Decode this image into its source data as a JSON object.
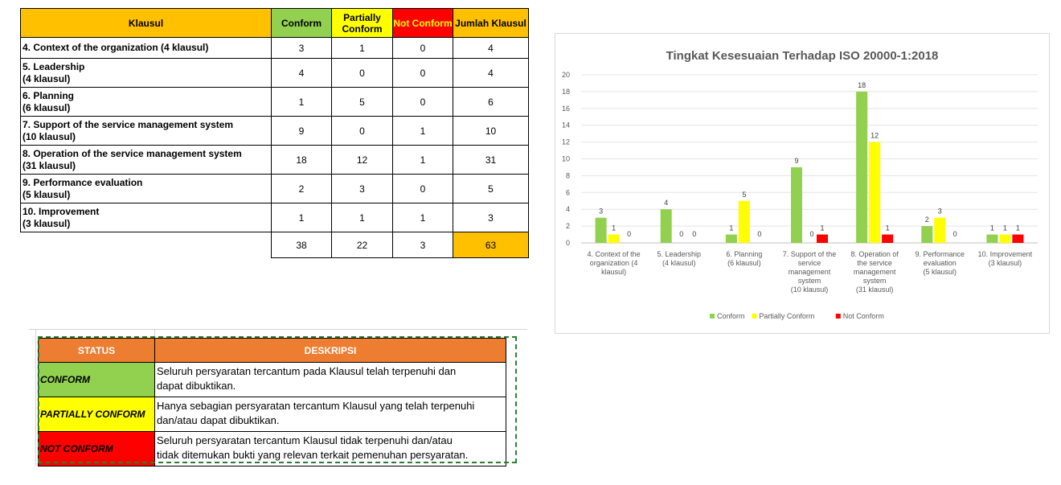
{
  "table": {
    "headers": {
      "klausul": "Klausul",
      "conform": "Conform",
      "partial": "Partially Conform",
      "not": "Not Conform",
      "jumlah": "Jumlah Klausul"
    },
    "rows": [
      {
        "line1": "4. Context of the organization (4 klausul)",
        "line2": "",
        "conform": "3",
        "partial": "1",
        "not": "0",
        "jumlah": "4"
      },
      {
        "line1": "5. Leadership",
        "line2": "(4 klausul)",
        "conform": "4",
        "partial": "0",
        "not": "0",
        "jumlah": "4"
      },
      {
        "line1": "6. Planning",
        "line2": "(6 klausul)",
        "conform": "1",
        "partial": "5",
        "not": "0",
        "jumlah": "6"
      },
      {
        "line1": "7. Support of the service management system",
        "line2": "(10 klausul)",
        "conform": "9",
        "partial": "0",
        "not": "1",
        "jumlah": "10"
      },
      {
        "line1": "8. Operation of the service management system",
        "line2": "(31 klausul)",
        "conform": "18",
        "partial": "12",
        "not": "1",
        "jumlah": "31"
      },
      {
        "line1": "9. Performance evaluation",
        "line2": "(5 klausul)",
        "conform": "2",
        "partial": "3",
        "not": "0",
        "jumlah": "5"
      },
      {
        "line1": "10. Improvement",
        "line2": "(3 klausul)",
        "conform": "1",
        "partial": "1",
        "not": "1",
        "jumlah": "3"
      }
    ],
    "totals": {
      "conform": "38",
      "partial": "22",
      "not": "3",
      "jumlah": "63"
    }
  },
  "chart_data": {
    "type": "bar",
    "title": "Tingkat Kesesuaian Terhadap ISO 20000-1:2018",
    "categories": [
      [
        "4. Context of the",
        "organization (4",
        "klausul)"
      ],
      [
        "5. Leadership",
        "(4 klausul)"
      ],
      [
        "6. Planning",
        "(6 klausul)"
      ],
      [
        "7. Support of the",
        "service",
        "management",
        "system",
        "(10 klausul)"
      ],
      [
        "8. Operation of",
        "the service",
        "management",
        "system",
        "(31 klausul)"
      ],
      [
        "9. Performance",
        "evaluation",
        "(5 klausul)"
      ],
      [
        "10. Improvement",
        "(3 klausul)"
      ]
    ],
    "series": [
      {
        "name": "Conform",
        "color": "#92d050",
        "values": [
          3,
          4,
          1,
          9,
          18,
          2,
          1
        ]
      },
      {
        "name": "Partially Conform",
        "color": "#ffff00",
        "values": [
          1,
          0,
          5,
          0,
          12,
          3,
          1
        ]
      },
      {
        "name": "Not Conform",
        "color": "#ff0000",
        "values": [
          0,
          0,
          0,
          1,
          1,
          0,
          1
        ]
      }
    ],
    "ylim": [
      0,
      20
    ],
    "yticks": [
      0,
      2,
      4,
      6,
      8,
      10,
      12,
      14,
      16,
      18,
      20
    ],
    "grid": true,
    "legend": "bottom"
  },
  "status_table": {
    "headers": {
      "status": "STATUS",
      "deskripsi": "DESKRIPSI"
    },
    "rows": [
      {
        "status": "CONFORM",
        "desc1": "Seluruh persyaratan tercantum pada Klausul telah terpenuhi dan",
        "desc2": "dapat dibuktikan."
      },
      {
        "status": "PARTIALLY CONFORM",
        "desc1": "Hanya sebagian persyaratan tercantum Klausul yang telah terpenuhi",
        "desc2": "dan/atau dapat dibuktikan."
      },
      {
        "status": "NOT CONFORM",
        "desc1": "Seluruh persyaratan tercantum Klausul tidak terpenuhi dan/atau",
        "desc2": "tidak ditemukan bukti yang relevan terkait pemenuhan persyaratan."
      }
    ]
  }
}
